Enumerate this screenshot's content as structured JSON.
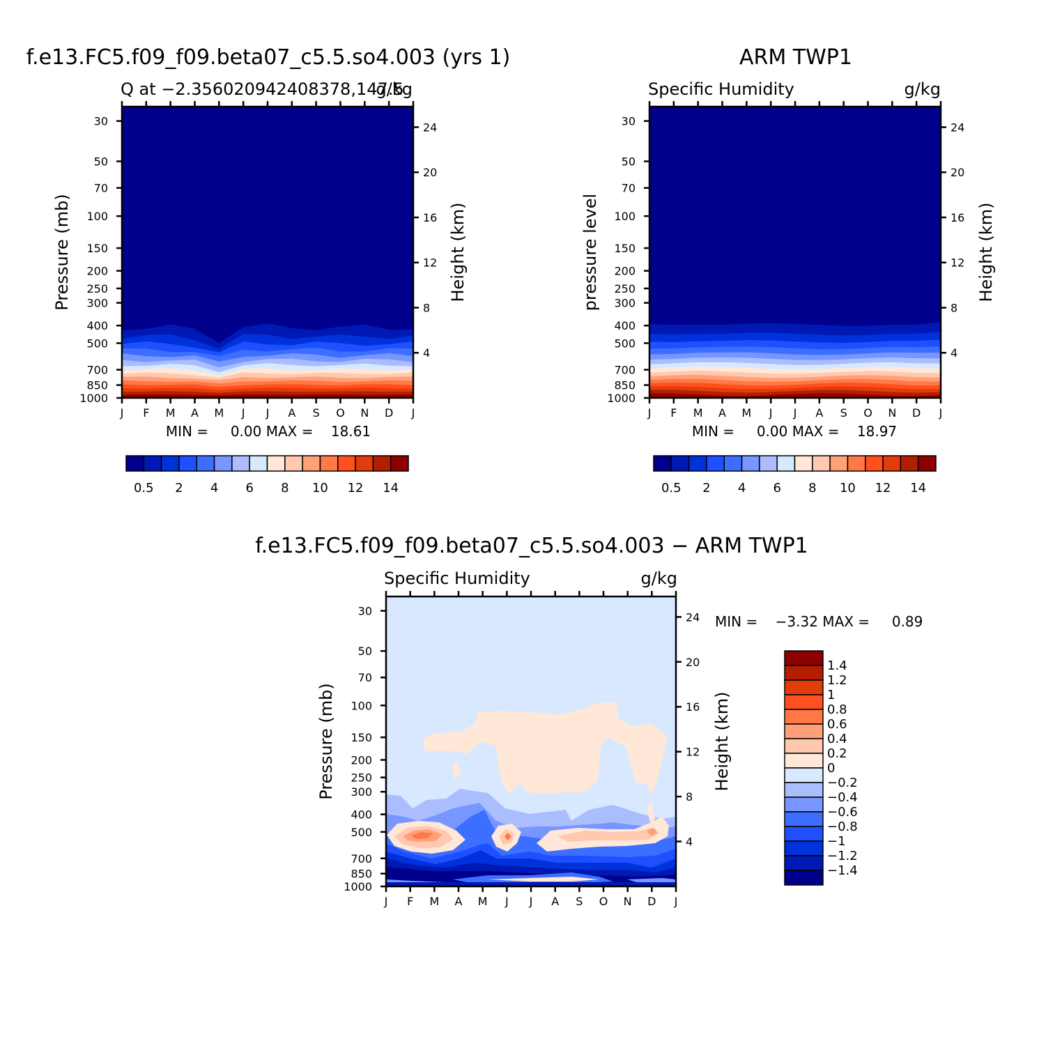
{
  "palette": {
    "abs": [
      "#00008c",
      "#0019b4",
      "#0032dc",
      "#1e50ff",
      "#3c6eff",
      "#7896ff",
      "#aabeff",
      "#d7e8ff",
      "#ffe8d7",
      "#ffc8af",
      "#ffa078",
      "#ff7846",
      "#ff501e",
      "#e13c0a",
      "#b41e00",
      "#8c0000"
    ],
    "diff": [
      "#00008c",
      "#0019b4",
      "#0032dc",
      "#1e50ff",
      "#3c6eff",
      "#7896ff",
      "#aabeff",
      "#d7e8ff",
      "#ffe8d7",
      "#ffc8af",
      "#ffa078",
      "#ff7846",
      "#ff501e",
      "#e13c0a",
      "#b41e00",
      "#8c0000"
    ]
  },
  "chart_data": [
    {
      "type": "contour",
      "title": "f.e13.FC5.f09_f09.beta07_c5.5.so4.003 (yrs 1)",
      "subtitle_left": "Q at −2.356020942408378,147.5",
      "subtitle_right": "g/kg",
      "ylabel": "Pressure (mb)",
      "ylabel_right": "Height (km)",
      "x_ticks": [
        "J",
        "F",
        "M",
        "A",
        "M",
        "J",
        "J",
        "A",
        "S",
        "O",
        "N",
        "D",
        "J"
      ],
      "y_ticks": [
        "30",
        "50",
        "70",
        "100",
        "150",
        "200",
        "250",
        "300",
        "400",
        "500",
        "700",
        "850",
        "1000"
      ],
      "y_tick_values": [
        30,
        50,
        70,
        100,
        150,
        200,
        250,
        300,
        400,
        500,
        700,
        850,
        1000
      ],
      "y_right_ticks": [
        "24",
        "20",
        "16",
        "12",
        "8",
        "4"
      ],
      "ylim": [
        1000,
        25
      ],
      "min_max_text": "MIN =     0.00 MAX =    18.61",
      "colorbar_labels": [
        "0.5",
        "2",
        "4",
        "6",
        "8",
        "10",
        "12",
        "14"
      ],
      "colorbar_levels": [
        0.5,
        1,
        2,
        3,
        4,
        5,
        6,
        7,
        8,
        9,
        10,
        11,
        12,
        13,
        14
      ],
      "moist_layer_top_mb": [
        320,
        320,
        320,
        330,
        390,
        320,
        315,
        318,
        318,
        325,
        318,
        318,
        320
      ]
    },
    {
      "type": "contour",
      "title": "ARM TWP1",
      "subtitle_left": "Specific Humidity",
      "subtitle_right": "g/kg",
      "ylabel": "pressure level",
      "ylabel_right": "Height (km)",
      "x_ticks": [
        "J",
        "F",
        "M",
        "A",
        "M",
        "J",
        "J",
        "A",
        "S",
        "O",
        "N",
        "D",
        "J"
      ],
      "y_ticks": [
        "30",
        "50",
        "70",
        "100",
        "150",
        "200",
        "250",
        "300",
        "400",
        "500",
        "700",
        "850",
        "1000"
      ],
      "y_tick_values": [
        30,
        50,
        70,
        100,
        150,
        200,
        250,
        300,
        400,
        500,
        700,
        850,
        1000
      ],
      "y_right_ticks": [
        "24",
        "20",
        "16",
        "12",
        "8",
        "4"
      ],
      "ylim": [
        1000,
        25
      ],
      "min_max_text": "MIN =     0.00 MAX =    18.97",
      "colorbar_labels": [
        "0.5",
        "2",
        "4",
        "6",
        "8",
        "10",
        "12",
        "14"
      ],
      "colorbar_levels": [
        0.5,
        1,
        2,
        3,
        4,
        5,
        6,
        7,
        8,
        9,
        10,
        11,
        12,
        13,
        14
      ],
      "moist_layer_top_mb": [
        300,
        300,
        300,
        305,
        305,
        305,
        305,
        305,
        305,
        305,
        305,
        310,
        300
      ]
    },
    {
      "type": "contour",
      "title": "f.e13.FC5.f09_f09.beta07_c5.5.so4.003 − ARM TWP1",
      "subtitle_left": "Specific Humidity",
      "subtitle_right": "g/kg",
      "ylabel": "Pressure (mb)",
      "ylabel_right": "Height (km)",
      "x_ticks": [
        "J",
        "F",
        "M",
        "A",
        "M",
        "J",
        "J",
        "A",
        "S",
        "O",
        "N",
        "D",
        "J"
      ],
      "y_ticks": [
        "30",
        "50",
        "70",
        "100",
        "150",
        "200",
        "250",
        "300",
        "400",
        "500",
        "700",
        "850",
        "1000"
      ],
      "y_tick_values": [
        30,
        50,
        70,
        100,
        150,
        200,
        250,
        300,
        400,
        500,
        700,
        850,
        1000
      ],
      "y_right_ticks": [
        "24",
        "20",
        "16",
        "12",
        "8",
        "4"
      ],
      "ylim": [
        1000,
        25
      ],
      "min_max_text": "MIN =    −3.32 MAX =     0.89",
      "colorbar_labels": [
        "1.4",
        "1.2",
        "1",
        "0.8",
        "0.6",
        "0.4",
        "0.2",
        "0",
        "−0.2",
        "−0.4",
        "−0.6",
        "−0.8",
        "−1",
        "−1.2",
        "−1.4"
      ],
      "colorbar_levels": [
        -1.4,
        -1.2,
        -1,
        -0.8,
        -0.6,
        -0.4,
        -0.2,
        0,
        0.2,
        0.4,
        0.6,
        0.8,
        1,
        1.2,
        1.4
      ]
    }
  ]
}
